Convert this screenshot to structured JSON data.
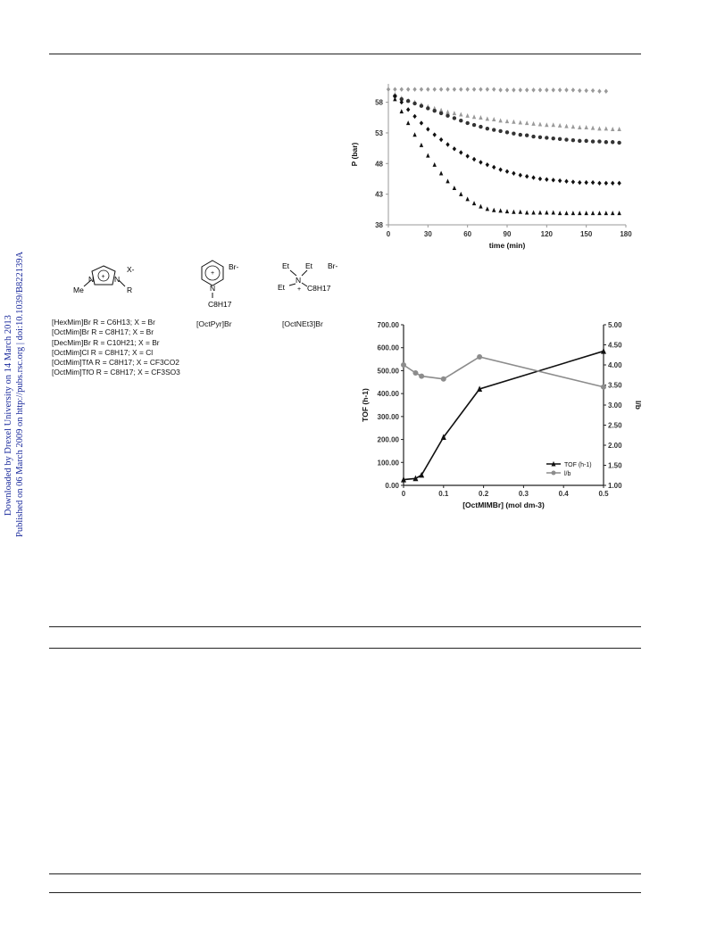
{
  "sidebar": {
    "downloaded": "Downloaded by Drexel University on 14 March 2013",
    "published": "Published on 06 March 2009 on http://pubs.rsc.org | doi:10.1039/B822139A"
  },
  "structures": {
    "imidazolium": {
      "anion": "X-",
      "plus": "+",
      "n1": "N",
      "n2": "N",
      "me": "Me",
      "r": "R"
    },
    "pyridinium": {
      "anion": "Br-",
      "plus": "+",
      "n": "N",
      "chain": "C8H17",
      "name": "[OctPyr]Br"
    },
    "ammonium": {
      "et1": "Et",
      "et2": "Et",
      "et3": "Et",
      "n": "N",
      "plus": "+",
      "chain": "C8H17",
      "anion": "Br-",
      "name": "[OctNEt3]Br"
    }
  },
  "il_list": [
    {
      "name": "[HexMim]Br",
      "r": "C6H13",
      "x": "Br"
    },
    {
      "name": "[OctMim]Br",
      "r": "C8H17",
      "x": "Br"
    },
    {
      "name": "[DecMim]Br",
      "r": "C10H21",
      "x": "Br"
    },
    {
      "name": "[OctMim]Cl",
      "r": "C8H17",
      "x": "Cl"
    },
    {
      "name": "[OctMim]TfA",
      "r": "C8H17",
      "x": "CF3CO2"
    },
    {
      "name": "[OctMim]TfO",
      "r": "C8H17",
      "x": "CF3SO3"
    }
  ],
  "chart_data": [
    {
      "type": "scatter",
      "xlabel": "time (min)",
      "ylabel": "P (bar)",
      "xlim": [
        0,
        180
      ],
      "ylim": [
        38,
        61
      ],
      "xticks": [
        0,
        30,
        60,
        90,
        120,
        150,
        180
      ],
      "yticks": [
        38,
        43,
        48,
        53,
        58
      ],
      "grid": false,
      "series": [
        {
          "marker": "diamond",
          "color": "#9a9a9a",
          "x": [
            0,
            5,
            10,
            15,
            20,
            25,
            30,
            35,
            40,
            45,
            50,
            55,
            60,
            65,
            70,
            75,
            80,
            85,
            90,
            95,
            100,
            105,
            110,
            115,
            120,
            125,
            130,
            135,
            140,
            145,
            150,
            155,
            160,
            165
          ],
          "y": [
            60.1,
            60.1,
            60.1,
            60.1,
            60.1,
            60.1,
            60.1,
            60.1,
            60.1,
            60.1,
            60.1,
            60.1,
            60.1,
            60.1,
            60.1,
            60.1,
            60.1,
            60,
            60,
            60,
            60,
            60,
            60,
            60,
            60,
            60,
            60,
            60,
            60,
            59.9,
            59.9,
            59.9,
            59.8,
            59.8
          ]
        },
        {
          "marker": "triangle",
          "color": "#9a9a9a",
          "x": [
            5,
            10,
            15,
            20,
            25,
            30,
            35,
            40,
            45,
            50,
            55,
            60,
            65,
            70,
            75,
            80,
            85,
            90,
            95,
            100,
            105,
            110,
            115,
            120,
            125,
            130,
            135,
            140,
            145,
            150,
            155,
            160,
            165,
            170,
            175
          ],
          "y": [
            59.3,
            58.7,
            58.3,
            58.0,
            57.6,
            57.3,
            57.0,
            56.7,
            56.4,
            56.2,
            56.0,
            55.8,
            55.6,
            55.5,
            55.3,
            55.2,
            55.0,
            54.9,
            54.8,
            54.7,
            54.6,
            54.5,
            54.4,
            54.3,
            54.3,
            54.2,
            54.1,
            54.0,
            53.9,
            53.9,
            53.8,
            53.7,
            53.7,
            53.6,
            53.6
          ]
        },
        {
          "marker": "circle",
          "color": "#333333",
          "x": [
            5,
            10,
            15,
            20,
            25,
            30,
            35,
            40,
            45,
            50,
            55,
            60,
            65,
            70,
            75,
            80,
            85,
            90,
            95,
            100,
            105,
            110,
            115,
            120,
            125,
            130,
            135,
            140,
            145,
            150,
            155,
            160,
            165,
            170,
            175
          ],
          "y": [
            59.0,
            58.5,
            58.2,
            57.8,
            57.4,
            57.0,
            56.6,
            56.2,
            55.8,
            55.4,
            55.0,
            54.6,
            54.3,
            54.0,
            53.7,
            53.5,
            53.3,
            53.1,
            52.9,
            52.7,
            52.6,
            52.4,
            52.3,
            52.2,
            52.1,
            52.0,
            51.9,
            51.8,
            51.7,
            51.7,
            51.6,
            51.6,
            51.5,
            51.5,
            51.4
          ]
        },
        {
          "marker": "diamond",
          "color": "#111111",
          "x": [
            5,
            10,
            15,
            20,
            25,
            30,
            35,
            40,
            45,
            50,
            55,
            60,
            65,
            70,
            75,
            80,
            85,
            90,
            95,
            100,
            105,
            110,
            115,
            120,
            125,
            130,
            135,
            140,
            145,
            150,
            155,
            160,
            165,
            170,
            175
          ],
          "y": [
            59.0,
            58.0,
            56.8,
            55.7,
            54.6,
            53.6,
            52.7,
            51.9,
            51.1,
            50.4,
            49.8,
            49.2,
            48.7,
            48.2,
            47.8,
            47.4,
            47.0,
            46.7,
            46.4,
            46.1,
            45.9,
            45.7,
            45.5,
            45.4,
            45.3,
            45.2,
            45.1,
            45.0,
            44.9,
            44.9,
            44.9,
            44.8,
            44.8,
            44.8,
            44.8
          ]
        },
        {
          "marker": "triangle",
          "color": "#111111",
          "x": [
            5,
            10,
            15,
            20,
            25,
            30,
            35,
            40,
            45,
            50,
            55,
            60,
            65,
            70,
            75,
            80,
            85,
            90,
            95,
            100,
            105,
            110,
            115,
            120,
            125,
            130,
            135,
            140,
            145,
            150,
            155,
            160,
            165,
            170,
            175
          ],
          "y": [
            58.5,
            56.5,
            54.6,
            52.7,
            51.0,
            49.3,
            47.8,
            46.4,
            45.1,
            44.0,
            43.0,
            42.2,
            41.5,
            41.0,
            40.6,
            40.4,
            40.3,
            40.2,
            40.1,
            40.1,
            40.0,
            40.0,
            40.0,
            40.0,
            40.0,
            39.9,
            39.9,
            39.9,
            39.9,
            39.9,
            39.9,
            39.9,
            39.9,
            39.9,
            39.9
          ]
        }
      ]
    },
    {
      "type": "line",
      "xlabel": "[OctMIMBr] (mol dm-3)",
      "ylabel": "TOF (h-1)",
      "y2label": "l/b",
      "xlim": [
        0,
        0.5
      ],
      "ylim": [
        0,
        700
      ],
      "y2lim": [
        1,
        5
      ],
      "xticks": [
        "0",
        "0.1",
        "0.2",
        "0.3",
        "0.4",
        "0.5"
      ],
      "yticks": [
        "0.00",
        "100.00",
        "200.00",
        "300.00",
        "400.00",
        "500.00",
        "600.00",
        "700.00"
      ],
      "y2ticks": [
        "1.00",
        "1.50",
        "2.00",
        "2.50",
        "3.00",
        "3.50",
        "4.00",
        "4.50",
        "5.00"
      ],
      "legend_position": "lower-right",
      "grid": false,
      "series": [
        {
          "name": "TOF (h-1)",
          "axis": "left",
          "marker": "triangle",
          "color": "#111111",
          "x": [
            0,
            0.03,
            0.045,
            0.1,
            0.19,
            0.5
          ],
          "y": [
            25,
            30,
            45,
            210,
            420,
            585
          ]
        },
        {
          "name": "l/b",
          "axis": "right",
          "marker": "circle",
          "color": "#8c8c8c",
          "x": [
            0,
            0.03,
            0.045,
            0.1,
            0.19,
            0.5
          ],
          "y": [
            4.0,
            3.8,
            3.72,
            3.65,
            4.2,
            3.45
          ]
        }
      ]
    }
  ]
}
